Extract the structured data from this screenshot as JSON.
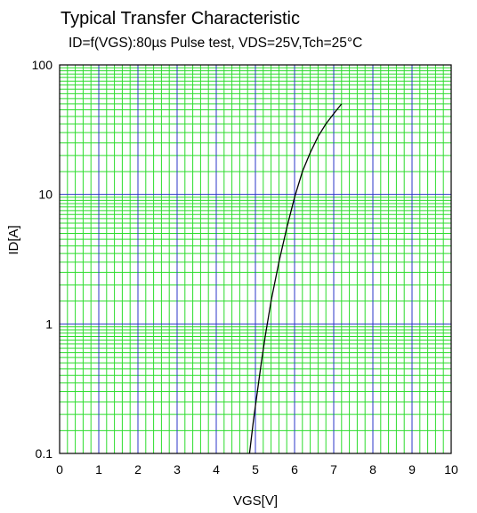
{
  "chart_data": {
    "type": "line",
    "title": "Typical Transfer Characteristic",
    "subtitle": "ID=f(VGS):80µs Pulse test, VDS=25V,Tch=25°C",
    "xlabel": "VGS[V]",
    "ylabel": "ID[A]",
    "x_scale": "linear",
    "y_scale": "log",
    "xlim": [
      0,
      10
    ],
    "ylim": [
      0.1,
      100
    ],
    "x_ticks": [
      "0",
      "1",
      "2",
      "3",
      "4",
      "5",
      "6",
      "7",
      "8",
      "9",
      "10"
    ],
    "y_ticks": [
      "0.1",
      "1",
      "10",
      "100"
    ],
    "grid": true,
    "legend": "none",
    "colors": {
      "major_grid": "#2b35c8",
      "minor_grid": "#2ddc2d",
      "axes": "#000000",
      "curve": "#000000"
    },
    "series": [
      {
        "x": [
          4.85,
          4.95,
          5.05,
          5.15,
          5.25,
          5.4,
          5.6,
          5.8,
          6.0,
          6.2,
          6.4,
          6.6,
          6.8,
          7.0,
          7.2
        ],
        "y": [
          0.1,
          0.18,
          0.3,
          0.5,
          0.8,
          1.5,
          3.0,
          5.5,
          9.5,
          15,
          21,
          28,
          35,
          42,
          50
        ]
      }
    ]
  }
}
